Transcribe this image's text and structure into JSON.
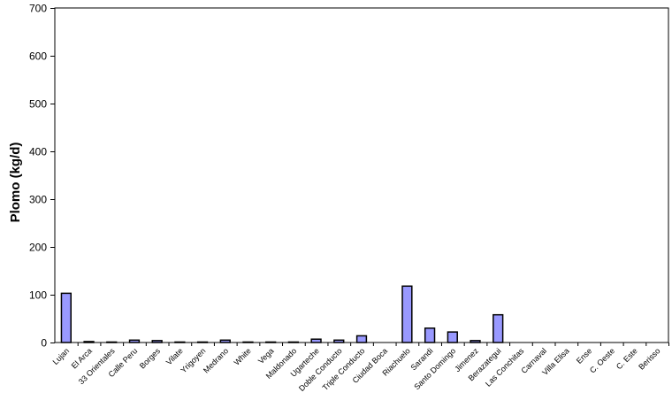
{
  "chart_data": {
    "type": "bar",
    "title": "",
    "xlabel": "",
    "ylabel": "Plomo (kg/d)",
    "ylim": [
      0,
      700
    ],
    "yticks": [
      0,
      100,
      200,
      300,
      400,
      500,
      600,
      700
    ],
    "grid": true,
    "legend": "none",
    "bar_color": "#9999ff",
    "categories": [
      "Lujan",
      "El Arca",
      "33 Orientales",
      "Calle Peru",
      "Borges",
      "Vilate",
      "Yrigoyen",
      "Medrano",
      "White",
      "Vega",
      "Maldonado",
      "Ugarteche",
      "Doble Conducto",
      "Triple Conducto",
      "Ciudad Boca",
      "Riachuelo",
      "Sarandi",
      "Santo Domingo",
      "Jimenez",
      "Berazategui",
      "Las Conchitas",
      "Carnaval",
      "Villa Elisa",
      "Ense",
      "C. Oeste",
      "C. Este",
      "Berisso"
    ],
    "values": [
      103,
      2,
      1,
      5,
      4,
      1,
      1,
      5,
      1,
      1,
      1,
      7,
      5,
      14,
      0,
      118,
      30,
      22,
      4,
      58,
      0,
      0,
      0,
      0,
      0,
      0,
      0
    ]
  }
}
